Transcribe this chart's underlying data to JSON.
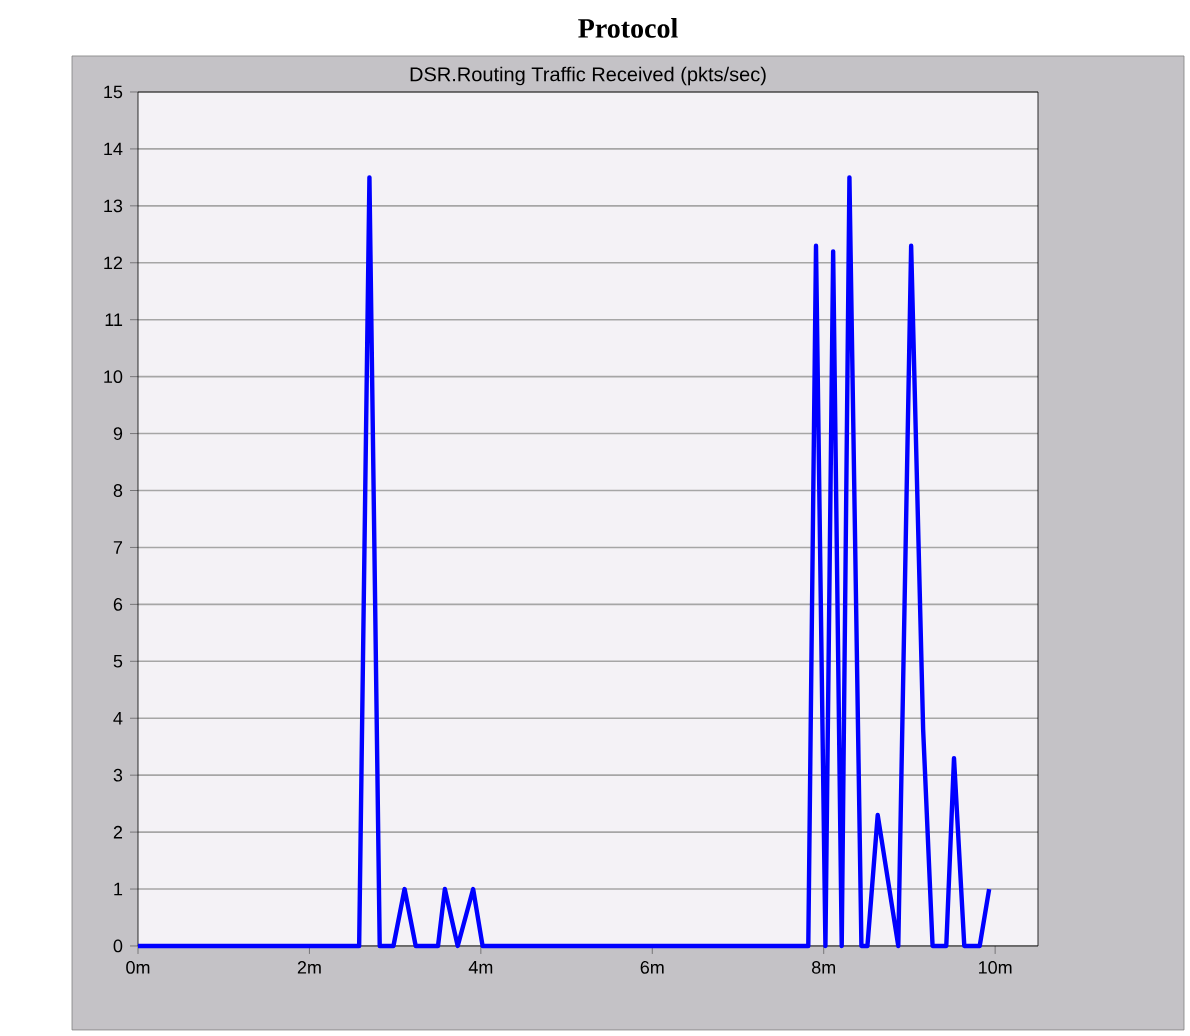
{
  "chart_data": {
    "type": "line",
    "title": "DSR.Routing Traffic Received (pkts/sec)",
    "annotations": [
      "Protocol"
    ],
    "x": [
      0,
      2.58,
      2.7,
      2.82,
      2.98,
      3.11,
      3.24,
      3.5,
      3.58,
      3.73,
      3.91,
      4.02,
      7.82,
      7.91,
      8.02,
      8.11,
      8.21,
      8.3,
      8.44,
      8.51,
      8.63,
      8.87,
      9.02,
      9.16,
      9.27,
      9.43,
      9.52,
      9.64,
      9.82,
      9.93
    ],
    "series": [
      {
        "color": "#0000ff",
        "values": [
          0,
          0,
          13.5,
          0,
          0,
          1,
          0,
          0,
          1,
          0,
          1,
          0,
          0,
          12.3,
          0,
          12.2,
          0,
          13.5,
          0,
          0,
          2.3,
          0,
          12.3,
          3.8,
          0,
          0,
          3.3,
          0,
          0,
          1
        ]
      }
    ],
    "xlim": [
      0,
      10.5
    ],
    "ylim": [
      0,
      15
    ],
    "xticks": [
      {
        "value": 0,
        "label": "0m"
      },
      {
        "value": 2,
        "label": "2m"
      },
      {
        "value": 4,
        "label": "4m"
      },
      {
        "value": 6,
        "label": "6m"
      },
      {
        "value": 8,
        "label": "8m"
      },
      {
        "value": 10,
        "label": "10m"
      }
    ],
    "yticks": [
      0,
      1,
      2,
      3,
      4,
      5,
      6,
      7,
      8,
      9,
      10,
      11,
      12,
      13,
      14,
      15
    ],
    "grid": "y",
    "marker": "none",
    "line_style": "solid"
  }
}
